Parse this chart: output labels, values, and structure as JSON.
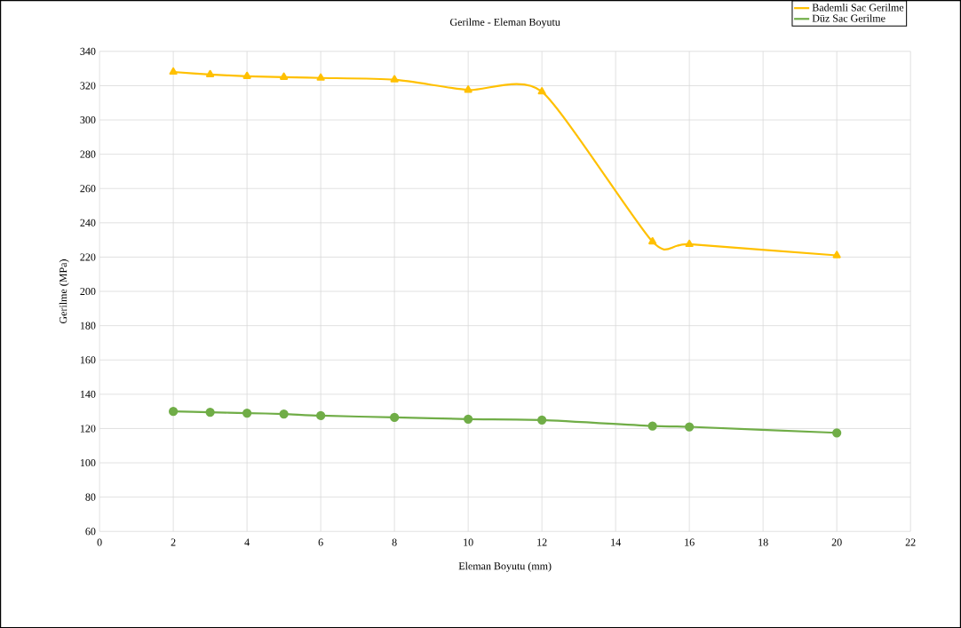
{
  "chart_data": {
    "type": "line",
    "title": "Gerilme - Eleman Boyutu",
    "xlabel": "Eleman Boyutu (mm)",
    "ylabel": "Gerilme (MPa)",
    "x": [
      2,
      3,
      4,
      5,
      6,
      8,
      10,
      12,
      15,
      16,
      20
    ],
    "series": [
      {
        "name": "Bademli Sac Gerilme",
        "color": "#ffc000",
        "marker": "triangle",
        "values": [
          328,
          326.5,
          325.5,
          325,
          324.5,
          323.5,
          317.5,
          316.5,
          229,
          227.5,
          221
        ]
      },
      {
        "name": "Düz Sac Gerilme",
        "color": "#70ad47",
        "marker": "circle",
        "values": [
          130,
          129.5,
          129,
          128.5,
          127.5,
          126.5,
          125.5,
          125,
          121.5,
          121,
          117.5
        ]
      }
    ],
    "xlim": [
      0,
      22
    ],
    "xticks": [
      0,
      2,
      4,
      6,
      8,
      10,
      12,
      14,
      16,
      18,
      20,
      22
    ],
    "ylim": [
      60,
      340
    ],
    "yticks": [
      60,
      80,
      100,
      120,
      140,
      160,
      180,
      200,
      220,
      240,
      260,
      280,
      300,
      320,
      340
    ],
    "grid": true,
    "legend": "top right"
  }
}
